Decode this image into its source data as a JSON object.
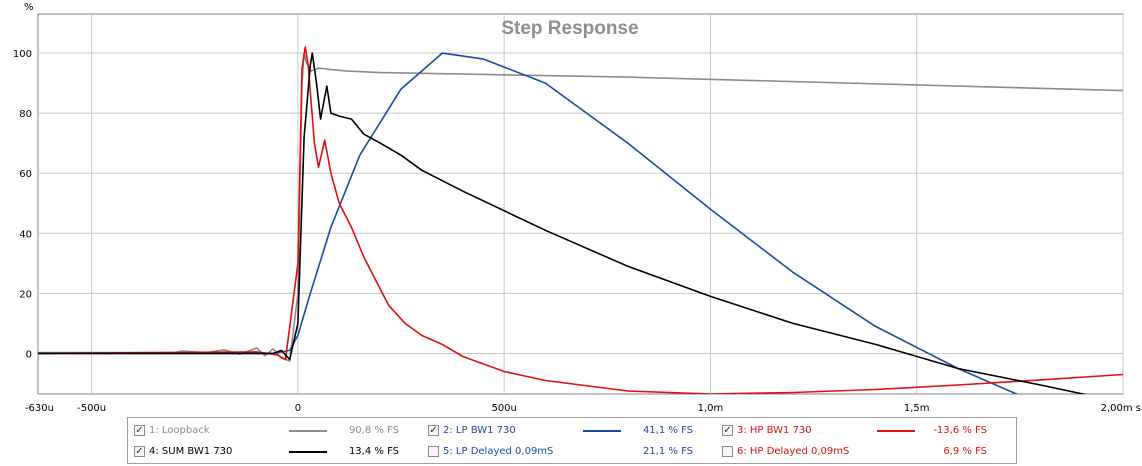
{
  "chart_data": {
    "type": "line",
    "title": "Step Response",
    "ylabel": "%",
    "xlabel": "s",
    "xlim": [
      -0.00063,
      0.002
    ],
    "ylim": [
      -13.5,
      113
    ],
    "grid": true,
    "x_ticks": [
      {
        "value": -0.00063,
        "label": "-630u"
      },
      {
        "value": -0.0005,
        "label": "-500u"
      },
      {
        "value": 0,
        "label": "0"
      },
      {
        "value": 0.0005,
        "label": "500u"
      },
      {
        "value": 0.001,
        "label": "1,0m"
      },
      {
        "value": 0.0015,
        "label": "1,5m"
      },
      {
        "value": 0.002,
        "label": "2,00m s"
      }
    ],
    "y_ticks": [
      0,
      20,
      40,
      60,
      80,
      100
    ],
    "series": [
      {
        "name": "Loopback",
        "color": "#8c8c8c",
        "points": [
          [
            -0.00063,
            0.3
          ],
          [
            -0.0003,
            0.3
          ],
          [
            -0.00028,
            0.8
          ],
          [
            -0.00022,
            0.3
          ],
          [
            -0.00018,
            1.2
          ],
          [
            -0.00014,
            -0.3
          ],
          [
            -0.0001,
            1.8
          ],
          [
            -8e-05,
            -0.8
          ],
          [
            -6e-05,
            1.5
          ],
          [
            -4e-05,
            -1.5
          ],
          [
            -2e-05,
            -2.5
          ],
          [
            0,
            20
          ],
          [
            1e-05,
            90
          ],
          [
            1.5e-05,
            100
          ],
          [
            2e-05,
            97
          ],
          [
            3e-05,
            94
          ],
          [
            5e-05,
            95
          ],
          [
            8e-05,
            94.5
          ],
          [
            0.00012,
            94
          ],
          [
            0.0002,
            93.5
          ],
          [
            0.0004,
            93
          ],
          [
            0.0008,
            92
          ],
          [
            0.0012,
            90.5
          ],
          [
            0.0016,
            89
          ],
          [
            0.002,
            87.5
          ]
        ]
      },
      {
        "name": "LP BW1 730",
        "color": "#1a4aa8",
        "points": [
          [
            -0.00063,
            0
          ],
          [
            -6e-05,
            0
          ],
          [
            -2e-05,
            1
          ],
          [
            0,
            6
          ],
          [
            3e-05,
            20
          ],
          [
            8e-05,
            42
          ],
          [
            0.00015,
            66
          ],
          [
            0.00025,
            88
          ],
          [
            0.00035,
            100
          ],
          [
            0.00045,
            98
          ],
          [
            0.0006,
            90
          ],
          [
            0.0008,
            70
          ],
          [
            0.001,
            48
          ],
          [
            0.0012,
            27
          ],
          [
            0.0014,
            9
          ],
          [
            0.0016,
            -5
          ],
          [
            0.00175,
            -14
          ]
        ]
      },
      {
        "name": "HP BW1 730",
        "color": "#e01010",
        "points": [
          [
            -0.00063,
            0
          ],
          [
            -0.0001,
            0.5
          ],
          [
            -5e-05,
            -0.5
          ],
          [
            -3e-05,
            -2
          ],
          [
            0,
            30
          ],
          [
            1e-05,
            95
          ],
          [
            1.8e-05,
            102
          ],
          [
            2.5e-05,
            96
          ],
          [
            4e-05,
            70
          ],
          [
            5e-05,
            62
          ],
          [
            6.5e-05,
            71
          ],
          [
            8e-05,
            60
          ],
          [
            0.0001,
            50
          ],
          [
            0.00013,
            42
          ],
          [
            0.00016,
            32
          ],
          [
            0.00019,
            24
          ],
          [
            0.00022,
            16
          ],
          [
            0.00026,
            10
          ],
          [
            0.0003,
            6
          ],
          [
            0.00035,
            3
          ],
          [
            0.0004,
            -1
          ],
          [
            0.0005,
            -6
          ],
          [
            0.0006,
            -9
          ],
          [
            0.0008,
            -12.5
          ],
          [
            0.001,
            -13.5
          ],
          [
            0.0012,
            -13
          ],
          [
            0.0014,
            -12
          ],
          [
            0.0016,
            -10.5
          ],
          [
            0.0018,
            -8.8
          ],
          [
            0.002,
            -7
          ]
        ]
      },
      {
        "name": "SUM BW1 730",
        "color": "#000000",
        "points": [
          [
            -0.00063,
            0
          ],
          [
            -6e-05,
            0
          ],
          [
            -4e-05,
            1
          ],
          [
            -2e-05,
            -2
          ],
          [
            0,
            10
          ],
          [
            1.5e-05,
            72
          ],
          [
            3e-05,
            96
          ],
          [
            3.5e-05,
            100
          ],
          [
            4.5e-05,
            90
          ],
          [
            5.5e-05,
            78
          ],
          [
            7e-05,
            89
          ],
          [
            8e-05,
            80
          ],
          [
            0.0001,
            79
          ],
          [
            0.00013,
            78
          ],
          [
            0.00016,
            73
          ],
          [
            0.0002,
            70
          ],
          [
            0.00025,
            66
          ],
          [
            0.0003,
            61
          ],
          [
            0.0004,
            54
          ],
          [
            0.0006,
            41
          ],
          [
            0.0008,
            29
          ],
          [
            0.001,
            19
          ],
          [
            0.0012,
            10
          ],
          [
            0.0014,
            3
          ],
          [
            0.0016,
            -5
          ],
          [
            0.0018,
            -10.5
          ],
          [
            0.00192,
            -14
          ]
        ]
      }
    ]
  },
  "legend": [
    {
      "label": "1: Loopback",
      "value": "90,8 % FS",
      "checked": true,
      "color": "#8c8c8c",
      "line_color": "#8c8c8c"
    },
    {
      "label": "2: LP BW1 730",
      "value": "41,1 % FS",
      "checked": true,
      "color": "#1a4aa8",
      "line_color": "#1a4aa8"
    },
    {
      "label": "3: HP BW1 730",
      "value": "-13,6 % FS",
      "checked": true,
      "color": "#e01010",
      "line_color": "#e01010"
    },
    {
      "label": "4: SUM BW1 730",
      "value": "13,4 % FS",
      "checked": true,
      "color": "#000000",
      "line_color": "#000000"
    },
    {
      "label": "5: LP Delayed 0,09mS",
      "value": "21,1 % FS",
      "checked": false,
      "color": "#1a4aa8",
      "line_color": ""
    },
    {
      "label": "6: HP Delayed 0,09mS",
      "value": "6,9 % FS",
      "checked": false,
      "color": "#e01010",
      "line_color": ""
    }
  ],
  "check_mark": "✓"
}
